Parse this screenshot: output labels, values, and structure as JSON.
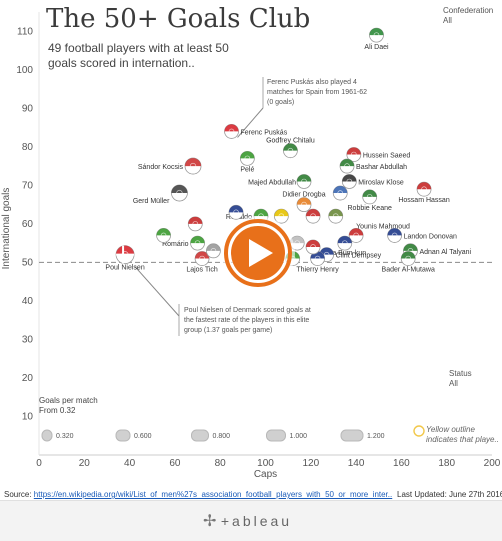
{
  "title": "The 50+ Goals Club",
  "subtitle": "49 football players with at least 50 goals scored in internation..",
  "confederation": {
    "label": "Confederation",
    "value": "All"
  },
  "status": {
    "label": "Status",
    "value": "All"
  },
  "goals_per_match": {
    "label": "Goals per match",
    "from": "From 0.32",
    "legend": [
      "0.320",
      "0.600",
      "0.800",
      "1.000",
      "1.200"
    ]
  },
  "yellow_note": [
    "Yellow outline",
    "indicates that playe.."
  ],
  "source": {
    "prefix": "Source: ",
    "link": "https://en.wikipedia.org/wiki/List_of_men%27s_association_football_players_with_50_or_more_inter.."
  },
  "last_updated": "Last Updated: June 27th 2016",
  "footer_brand": "+ableau",
  "annotations": {
    "puskas": [
      "Ferenc Puskás also played 4",
      "matches for Spain from 1961-62",
      "(0 goals)"
    ],
    "nielsen": [
      "Poul Nielsen of Denmark scored goals at",
      "the fastest rate of the players in this elite",
      "group (1.37 goals per game)"
    ]
  },
  "colors": {
    "play": "#e8701a",
    "refline": "#8a8a8a",
    "grid": "#eeeeee",
    "bubble": "#888888"
  },
  "chart_data": {
    "type": "scatter",
    "xlabel": "Caps",
    "ylabel": "International goals",
    "xlim": [
      0,
      200
    ],
    "ylim": [
      0,
      115
    ],
    "xticks": [
      0,
      20,
      40,
      60,
      80,
      100,
      120,
      140,
      160,
      180,
      200
    ],
    "yticks": [
      10,
      20,
      30,
      40,
      50,
      60,
      70,
      80,
      90,
      100,
      110
    ],
    "reference_line": 50,
    "grid": false,
    "points": [
      {
        "name": "Ali Daei",
        "x": 149,
        "y": 109,
        "label": "Ali Daei",
        "color": "#2e8b3a"
      },
      {
        "name": "Ferenc Puskás",
        "x": 85,
        "y": 84,
        "label": "Ferenc Puskás",
        "color": "#d8262e"
      },
      {
        "name": "Pelé",
        "x": 92,
        "y": 77,
        "label": "Pelé",
        "color": "#3a9a2f"
      },
      {
        "name": "Godfrey Chitalu",
        "x": 111,
        "y": 79,
        "label": "Godfrey Chitalu",
        "color": "#2e7d32"
      },
      {
        "name": "Hussein Saeed",
        "x": 139,
        "y": 78,
        "label": "Hussein Saeed",
        "color": "#c62828"
      },
      {
        "name": "Bashar Abdullah",
        "x": 136,
        "y": 75,
        "label": "Bashar Abdullah",
        "color": "#2e7d32"
      },
      {
        "name": "Sándor Kocsis",
        "x": 68,
        "y": 75,
        "label": "Sándor Kocsis",
        "color": "#cc3333"
      },
      {
        "name": "Majed Abdullah",
        "x": 117,
        "y": 71,
        "label": "Majed Abdullah",
        "color": "#2e7d32"
      },
      {
        "name": "Miroslav Klose",
        "x": 137,
        "y": 71,
        "label": "Miroslav Klose",
        "color": "#333333"
      },
      {
        "name": "Gerd Müller",
        "x": 62,
        "y": 68,
        "label": "Gerd Müller",
        "color": "#444444"
      },
      {
        "name": "Didier Drogba",
        "x": 117,
        "y": 65,
        "label": "Didier Drogba",
        "color": "#e67e22"
      },
      {
        "name": "Robbie Keane",
        "x": 146,
        "y": 67,
        "label": "Robbie Keane",
        "color": "#2e7d32"
      },
      {
        "name": "Hossam Hassan",
        "x": 170,
        "y": 69,
        "label": "Hossam Hassan",
        "color": "#c62828"
      },
      {
        "name": "Ronaldo",
        "x": 98,
        "y": 62,
        "label": "Ronaldo",
        "color": "#3a9a2f"
      },
      {
        "name": "Younis Mahmoud",
        "x": 140,
        "y": 57,
        "label": "Younis Mahmoud",
        "color": "#c62828"
      },
      {
        "name": "Landon Donovan",
        "x": 157,
        "y": 57,
        "label": "Landon Donovan",
        "color": "#1f3a8a"
      },
      {
        "name": "Romário",
        "x": 70,
        "y": 55,
        "label": "Romário",
        "color": "#3a9a2f"
      },
      {
        "name": "Cha Bum-kun",
        "x": 135,
        "y": 55,
        "label": "Cha Bum-kun",
        "color": "#1f3a8a"
      },
      {
        "name": "Clint Dempsey",
        "x": 127,
        "y": 52,
        "label": "Clint Dempsey",
        "color": "#1f3a8a"
      },
      {
        "name": "Adnan Al Talyani",
        "x": 164,
        "y": 53,
        "label": "Adnan Al Talyani",
        "color": "#2e7d32"
      },
      {
        "name": "Lajos Tichy",
        "x": 72,
        "y": 51,
        "label": "Lajos Tich",
        "color": "#cc3333"
      },
      {
        "name": "Thierry Henry",
        "x": 123,
        "y": 51,
        "label": "Thierry Henry",
        "color": "#1f3a8a"
      },
      {
        "name": "Bader Al-Mutawa",
        "x": 163,
        "y": 51,
        "label": "Bader Al-Mutawa",
        "color": "#2e7d32"
      },
      {
        "name": "Poul Nielsen",
        "x": 38,
        "y": 52,
        "label": "Poul Nielsen",
        "color": "#d8262e"
      },
      {
        "name": "",
        "x": 87,
        "y": 63,
        "label": "",
        "color": "#1f3a8a"
      },
      {
        "name": "",
        "x": 107,
        "y": 62,
        "label": "",
        "color": "#e6c200"
      },
      {
        "name": "",
        "x": 121,
        "y": 62,
        "label": "",
        "color": "#c62828"
      },
      {
        "name": "",
        "x": 131,
        "y": 62,
        "label": "",
        "color": "#6a8a3a"
      },
      {
        "name": "",
        "x": 114,
        "y": 55,
        "label": "",
        "color": "#bbbbbb"
      },
      {
        "name": "",
        "x": 121,
        "y": 54,
        "label": "",
        "color": "#c62828"
      },
      {
        "name": "",
        "x": 112,
        "y": 51,
        "label": "",
        "color": "#3a9a2f"
      },
      {
        "name": "",
        "x": 77,
        "y": 53,
        "label": "",
        "color": "#999999"
      },
      {
        "name": "",
        "x": 101,
        "y": 53,
        "label": "",
        "color": "#aaaaaa"
      },
      {
        "name": "",
        "x": 133,
        "y": 68,
        "label": "",
        "color": "#3a66b0"
      },
      {
        "name": "",
        "x": 69,
        "y": 60,
        "label": "",
        "color": "#c62828"
      },
      {
        "name": "",
        "x": 55,
        "y": 57,
        "label": "",
        "color": "#3a9a2f"
      }
    ]
  }
}
